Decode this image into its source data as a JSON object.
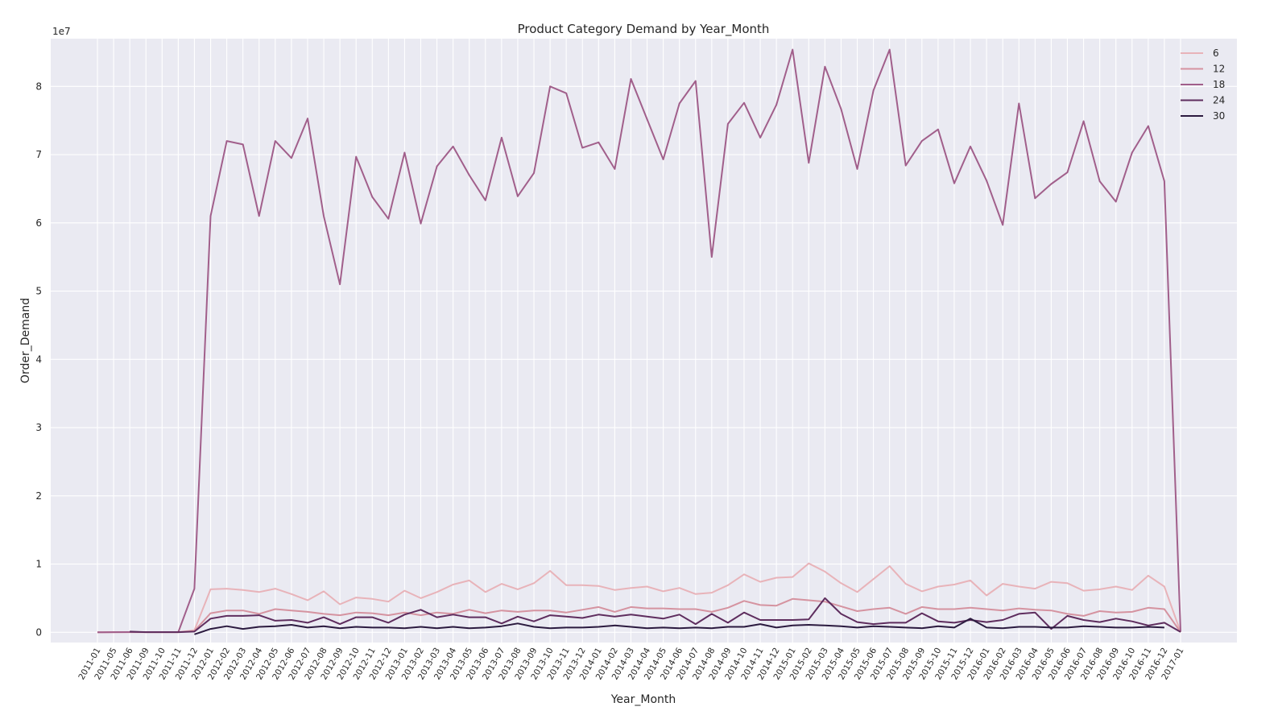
{
  "chart_data": {
    "type": "line",
    "title": "Product Category Demand by Year_Month",
    "xlabel": "Year_Month",
    "ylabel": "Order_Demand",
    "y_offset_label": "1e7",
    "ylim": [
      -1.5,
      87
    ],
    "yticks": [
      0,
      1,
      2,
      3,
      4,
      5,
      6,
      7,
      8
    ],
    "grid": true,
    "legend_position": "top-right",
    "categories": [
      "2011-01",
      "2011-05",
      "2011-06",
      "2011-09",
      "2011-10",
      "2011-11",
      "2011-12",
      "2012-01",
      "2012-02",
      "2012-03",
      "2012-04",
      "2012-05",
      "2012-06",
      "2012-07",
      "2012-08",
      "2012-09",
      "2012-10",
      "2012-11",
      "2012-12",
      "2013-01",
      "2013-02",
      "2013-03",
      "2013-04",
      "2013-05",
      "2013-06",
      "2013-07",
      "2013-08",
      "2013-09",
      "2013-10",
      "2013-11",
      "2013-12",
      "2014-01",
      "2014-02",
      "2014-03",
      "2014-04",
      "2014-05",
      "2014-06",
      "2014-07",
      "2014-08",
      "2014-09",
      "2014-10",
      "2014-11",
      "2014-12",
      "2015-01",
      "2015-02",
      "2015-03",
      "2015-04",
      "2015-05",
      "2015-06",
      "2015-07",
      "2015-08",
      "2015-09",
      "2015-10",
      "2015-11",
      "2015-12",
      "2016-01",
      "2016-02",
      "2016-03",
      "2016-04",
      "2016-05",
      "2016-06",
      "2016-07",
      "2016-08",
      "2016-09",
      "2016-10",
      "2016-11",
      "2016-12",
      "2017-01"
    ],
    "series": [
      {
        "name": "6",
        "color": "#e8b3b9",
        "values": [
          0,
          0.02,
          0.02,
          0.02,
          0.02,
          0.02,
          0.3,
          6.3,
          6.4,
          6.2,
          5.9,
          6.4,
          5.6,
          4.7,
          6.0,
          4.1,
          5.1,
          4.9,
          4.5,
          6.1,
          5.0,
          5.9,
          7.0,
          7.6,
          5.9,
          7.1,
          6.3,
          7.2,
          9.0,
          6.9,
          6.9,
          6.8,
          6.2,
          6.5,
          6.7,
          6.0,
          6.5,
          5.6,
          5.8,
          6.9,
          8.5,
          7.4,
          8.0,
          8.1,
          10.1,
          8.9,
          7.2,
          5.9,
          7.8,
          9.7,
          7.1,
          6.0,
          6.7,
          7.0,
          7.6,
          5.4,
          7.1,
          6.7,
          6.4,
          7.4,
          7.2,
          6.1,
          6.3,
          6.7,
          6.2,
          8.3,
          6.7,
          0.05
        ]
      },
      {
        "name": "12",
        "color": "#d593a0",
        "values": [
          0,
          0.02,
          0.02,
          0.02,
          0.02,
          0.02,
          0.2,
          2.8,
          3.2,
          3.2,
          2.7,
          3.4,
          3.2,
          3.0,
          2.7,
          2.5,
          2.9,
          2.8,
          2.5,
          2.9,
          2.5,
          2.9,
          2.7,
          3.3,
          2.8,
          3.2,
          3.0,
          3.2,
          3.2,
          2.9,
          3.3,
          3.7,
          3.0,
          3.7,
          3.5,
          3.5,
          3.4,
          3.4,
          3.0,
          3.6,
          4.6,
          4.0,
          3.9,
          4.9,
          4.7,
          4.5,
          3.8,
          3.1,
          3.4,
          3.6,
          2.7,
          3.7,
          3.4,
          3.4,
          3.6,
          3.4,
          3.2,
          3.5,
          3.3,
          3.2,
          2.7,
          2.4,
          3.1,
          2.9,
          3.0,
          3.6,
          3.4,
          0.05
        ]
      },
      {
        "name": "18",
        "color": "#a15f8b",
        "values": [
          0,
          0.02,
          0.03,
          0.03,
          0.03,
          0.03,
          6.4,
          61.0,
          72.0,
          71.5,
          61.0,
          72.0,
          69.5,
          75.3,
          61.0,
          51.0,
          69.7,
          63.8,
          60.6,
          70.3,
          59.9,
          68.3,
          71.2,
          67.0,
          63.3,
          72.5,
          63.9,
          67.3,
          80.0,
          79.0,
          71.0,
          71.8,
          67.9,
          81.1,
          75.2,
          69.3,
          77.5,
          80.8,
          55.0,
          74.5,
          77.6,
          72.5,
          77.3,
          85.4,
          68.8,
          82.9,
          76.7,
          67.9,
          79.4,
          85.4,
          68.4,
          72.0,
          73.7,
          65.8,
          71.2,
          66.2,
          59.7,
          77.5,
          63.6,
          65.7,
          67.4,
          74.9,
          66.1,
          63.1,
          70.3,
          74.2,
          66.1,
          0.1
        ]
      },
      {
        "name": "24",
        "color": "#5e2d5e",
        "values": [
          null,
          null,
          0.1,
          0.02,
          0.02,
          0.02,
          0.1,
          2.0,
          2.4,
          2.4,
          2.5,
          1.7,
          1.8,
          1.4,
          2.2,
          1.2,
          2.2,
          2.2,
          1.4,
          2.6,
          3.3,
          2.2,
          2.6,
          2.2,
          2.2,
          1.3,
          2.3,
          1.6,
          2.5,
          2.3,
          2.1,
          2.6,
          2.3,
          2.6,
          2.3,
          2.0,
          2.6,
          1.2,
          2.7,
          1.4,
          2.9,
          1.8,
          1.8,
          1.8,
          1.9,
          5.0,
          2.7,
          1.5,
          1.2,
          1.4,
          1.4,
          2.8,
          1.6,
          1.4,
          1.8,
          1.5,
          1.8,
          2.7,
          2.9,
          0.5,
          2.4,
          1.8,
          1.5,
          2.0,
          1.6,
          1.0,
          1.4,
          0.05
        ]
      },
      {
        "name": "30",
        "color": "#2b1a3f",
        "values": [
          null,
          null,
          null,
          null,
          null,
          null,
          -0.3,
          0.5,
          0.9,
          0.5,
          0.8,
          0.9,
          1.1,
          0.7,
          0.9,
          0.6,
          0.8,
          0.7,
          0.7,
          0.6,
          0.8,
          0.6,
          0.8,
          0.6,
          0.7,
          0.9,
          1.3,
          0.8,
          0.6,
          0.7,
          0.7,
          0.8,
          1.0,
          0.8,
          0.6,
          0.7,
          0.6,
          0.7,
          0.6,
          0.8,
          0.8,
          1.2,
          0.7,
          1.0,
          1.1,
          1.0,
          0.9,
          0.7,
          0.9,
          0.8,
          0.7,
          0.6,
          0.9,
          0.7,
          2.0,
          0.7,
          0.6,
          0.8,
          0.8,
          0.7,
          0.7,
          0.9,
          0.8,
          0.7,
          0.7,
          0.8,
          0.7,
          null
        ]
      }
    ]
  }
}
